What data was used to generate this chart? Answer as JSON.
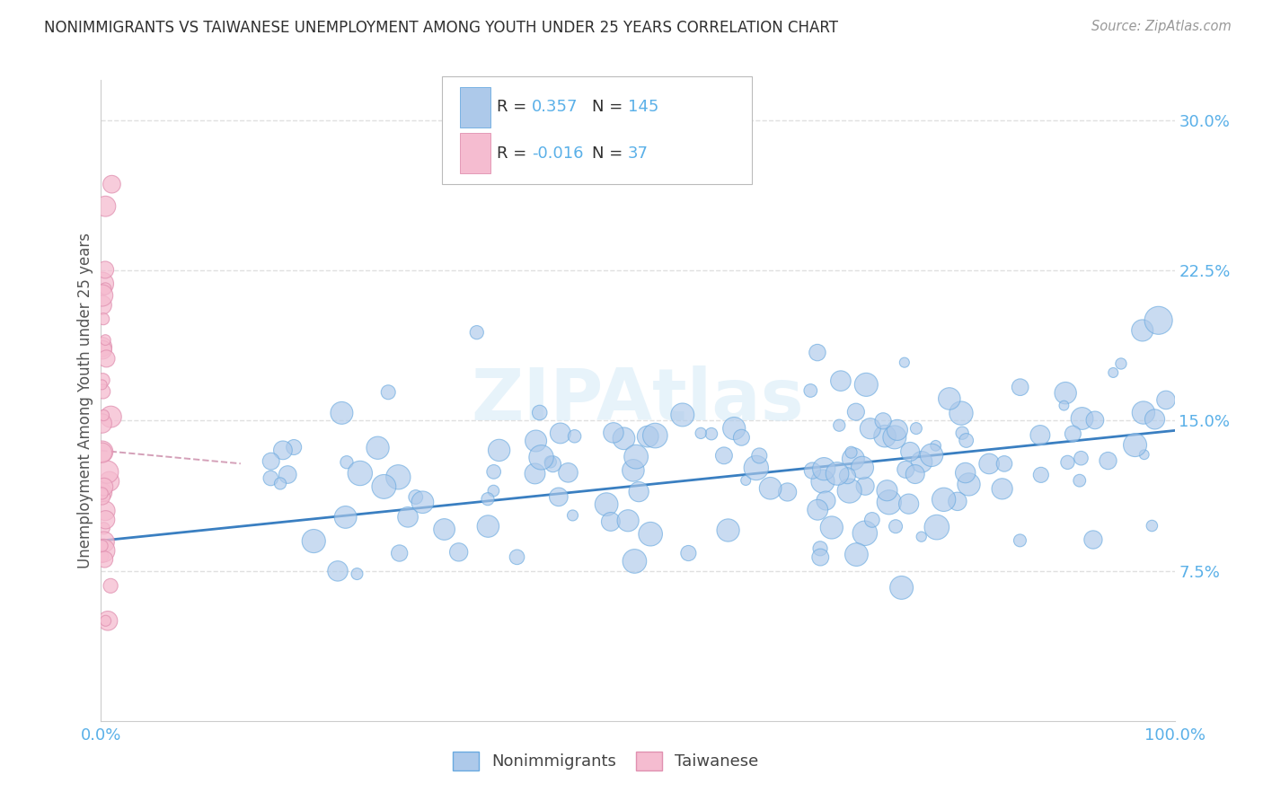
{
  "title": "NONIMMIGRANTS VS TAIWANESE UNEMPLOYMENT AMONG YOUTH UNDER 25 YEARS CORRELATION CHART",
  "source": "Source: ZipAtlas.com",
  "ylabel": "Unemployment Among Youth under 25 years",
  "xlim": [
    0.0,
    1.0
  ],
  "ylim": [
    0.0,
    0.32
  ],
  "xtick_positions": [
    0.0,
    1.0
  ],
  "xticklabels": [
    "0.0%",
    "100.0%"
  ],
  "ytick_positions": [
    0.075,
    0.15,
    0.225,
    0.3
  ],
  "ytick_labels": [
    "7.5%",
    "15.0%",
    "22.5%",
    "30.0%"
  ],
  "R_nonimm": 0.357,
  "N_nonimm": 145,
  "R_taiwan": -0.016,
  "N_taiwan": 37,
  "scatter_blue": "#adc9ea",
  "scatter_blue_edge": "#6aaae0",
  "scatter_pink": "#f5bcd0",
  "scatter_pink_edge": "#e090b0",
  "blue_line_color": "#3a7fc1",
  "pink_line_color": "#d4a0b8",
  "title_color": "#303030",
  "source_color": "#999999",
  "tick_color": "#5ab0e8",
  "ylabel_color": "#555555",
  "grid_color": "#e0e0e0",
  "watermark_color": "#d8ecf8",
  "legend_blue_color": "#adc9ea",
  "legend_pink_color": "#f5bcd0",
  "legend_blue_edge": "#6aaae0",
  "legend_pink_edge": "#e090b0",
  "legend_value_color": "#5ab0e8",
  "legend_text_color": "#303030"
}
